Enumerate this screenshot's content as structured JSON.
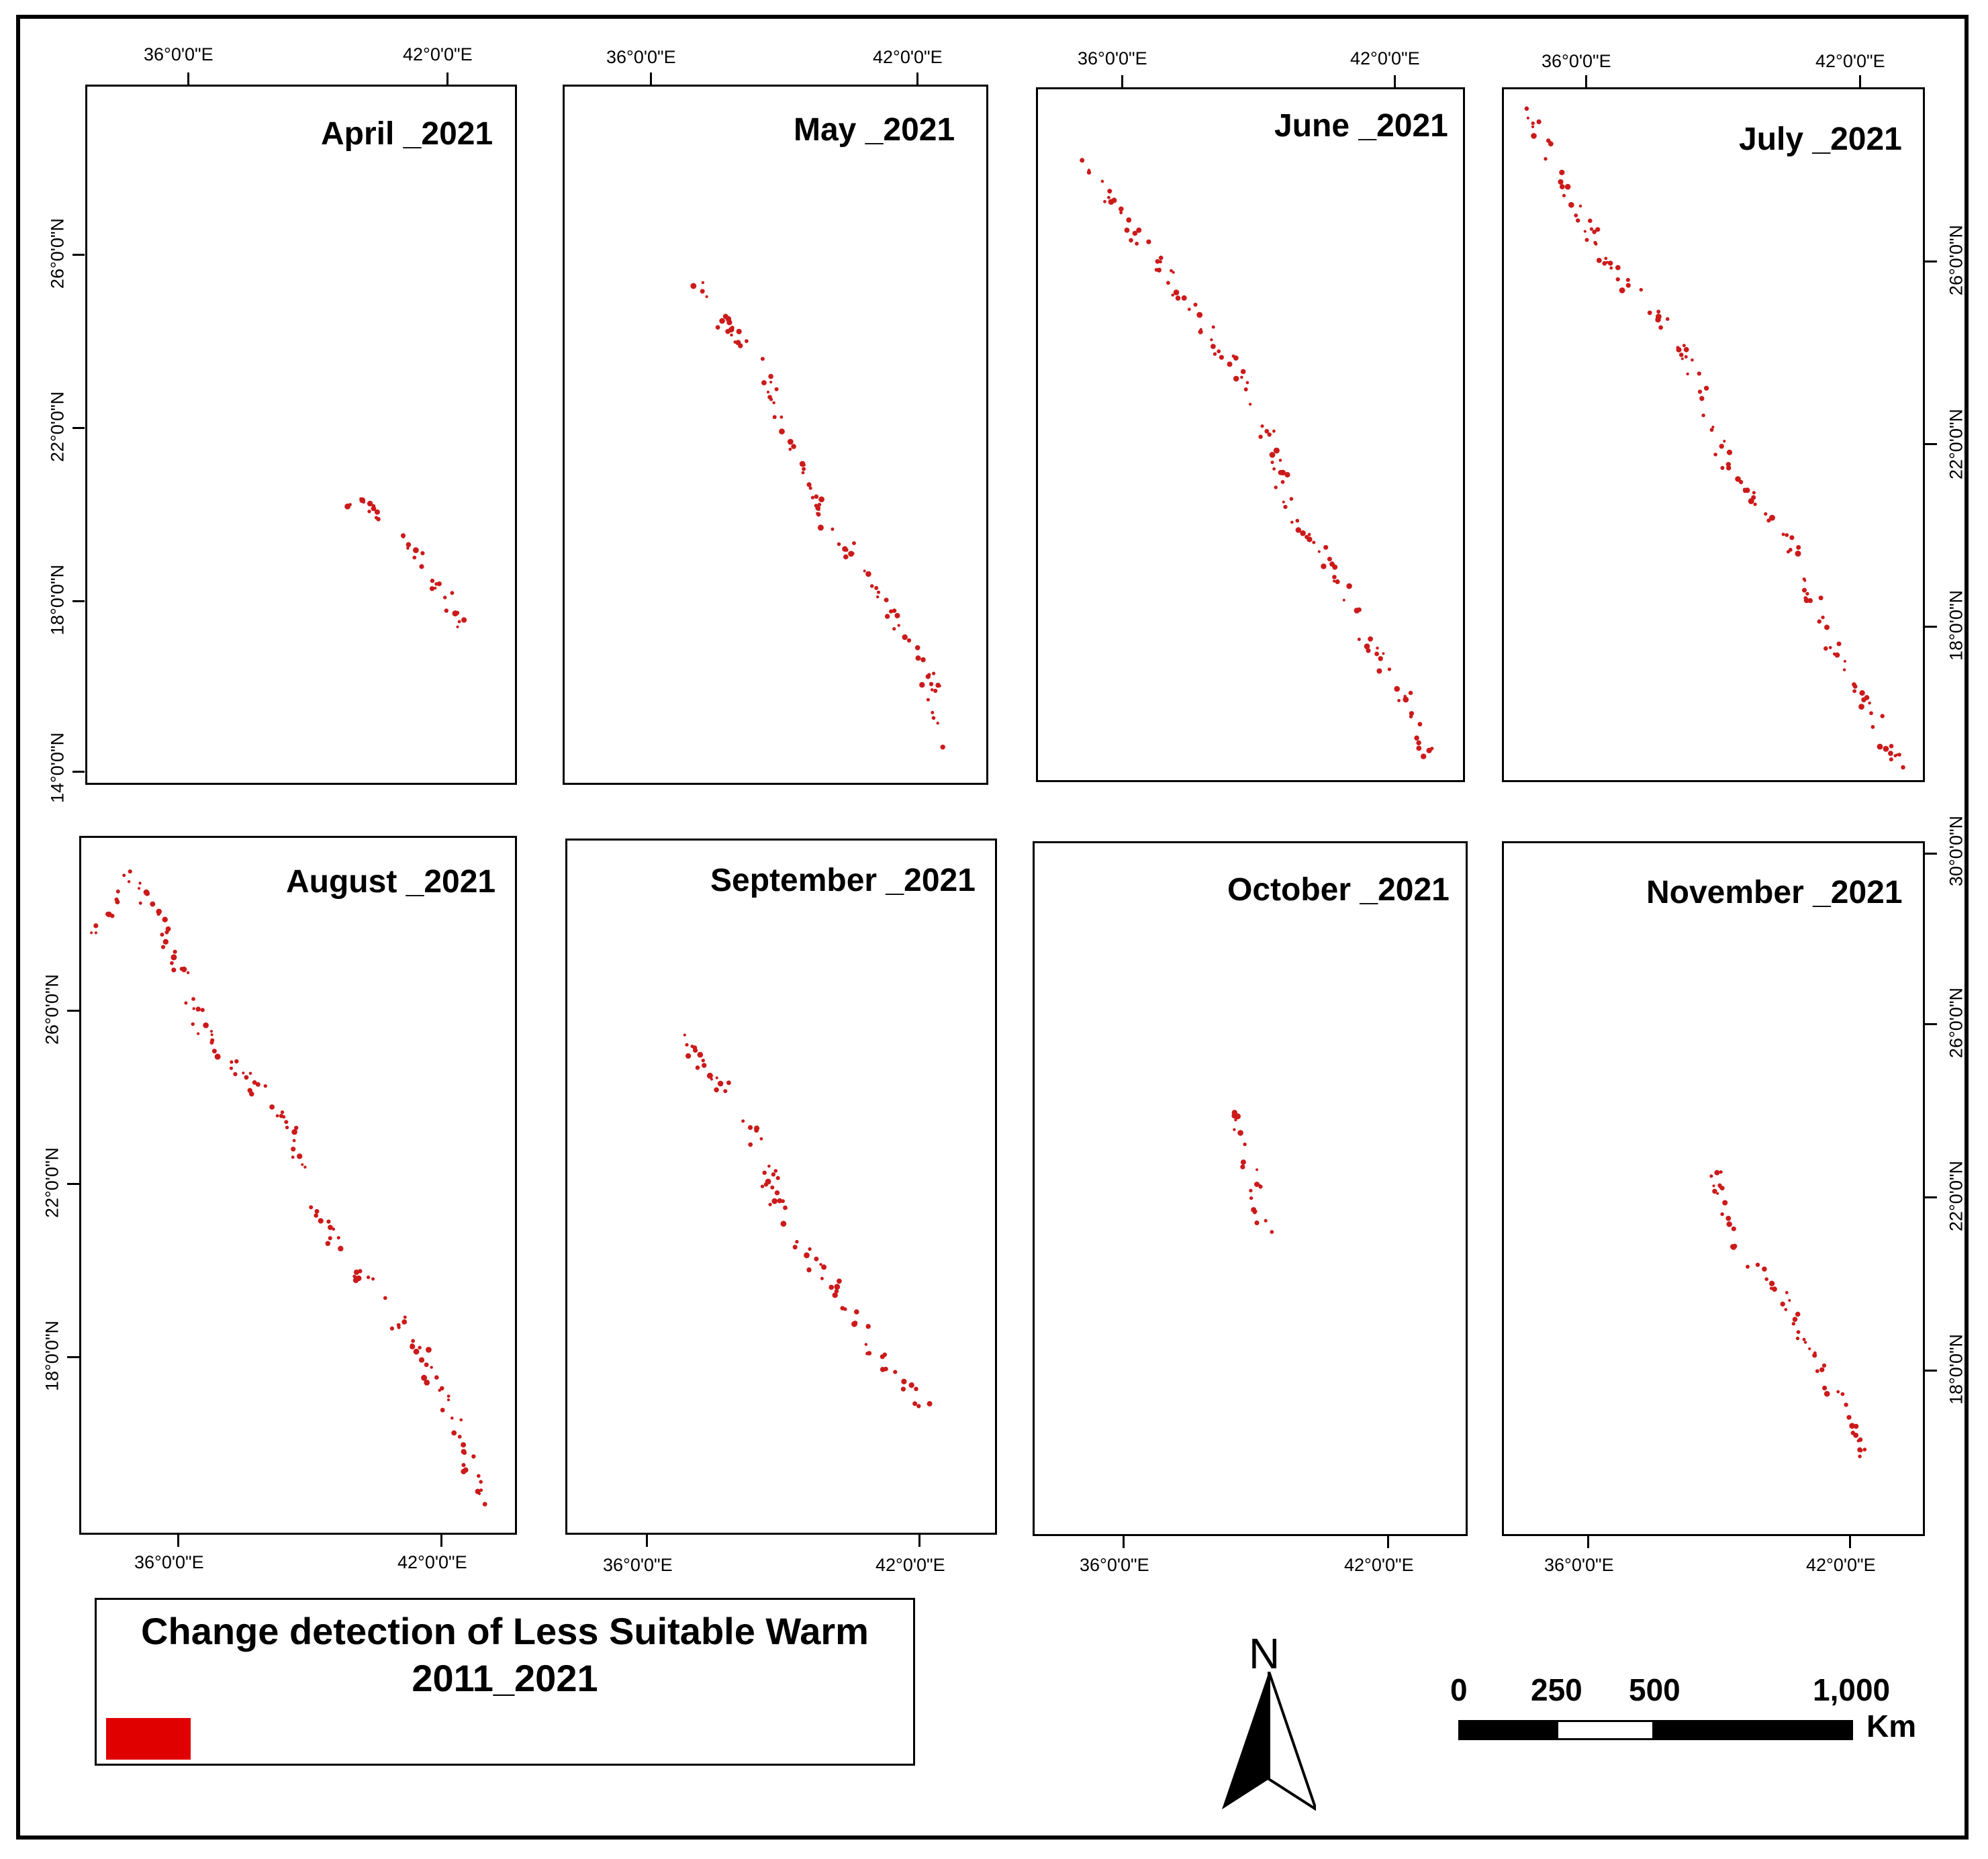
{
  "map": {
    "legend_title": "Change detection of Less Suitable Warm 2011_2021",
    "legend_title_line1": "Change detection of Less Suitable Warm",
    "legend_title_line2": "2011_2021",
    "legend_color": "#e00000",
    "point_color": "#cc1a1a",
    "north_label": "N",
    "scale": {
      "labels": [
        "0",
        "250",
        "500",
        "1,000"
      ],
      "unit": "Km"
    },
    "lon_ticks": [
      "36°0'0\"E",
      "42°0'0\"E"
    ],
    "lat_labels": {
      "14": "14°0'0\"N",
      "18": "18°0'0\"N",
      "22": "22°0'0\"N",
      "26": "26°0'0\"N",
      "30": "30°0'0\"N"
    },
    "panels": [
      {
        "title": "April _2021"
      },
      {
        "title": "May _2021"
      },
      {
        "title": "June _2021"
      },
      {
        "title": "July _2021"
      },
      {
        "title": "August _2021"
      },
      {
        "title": "September _2021"
      },
      {
        "title": "October _2021"
      },
      {
        "title": "November _2021"
      }
    ]
  }
}
